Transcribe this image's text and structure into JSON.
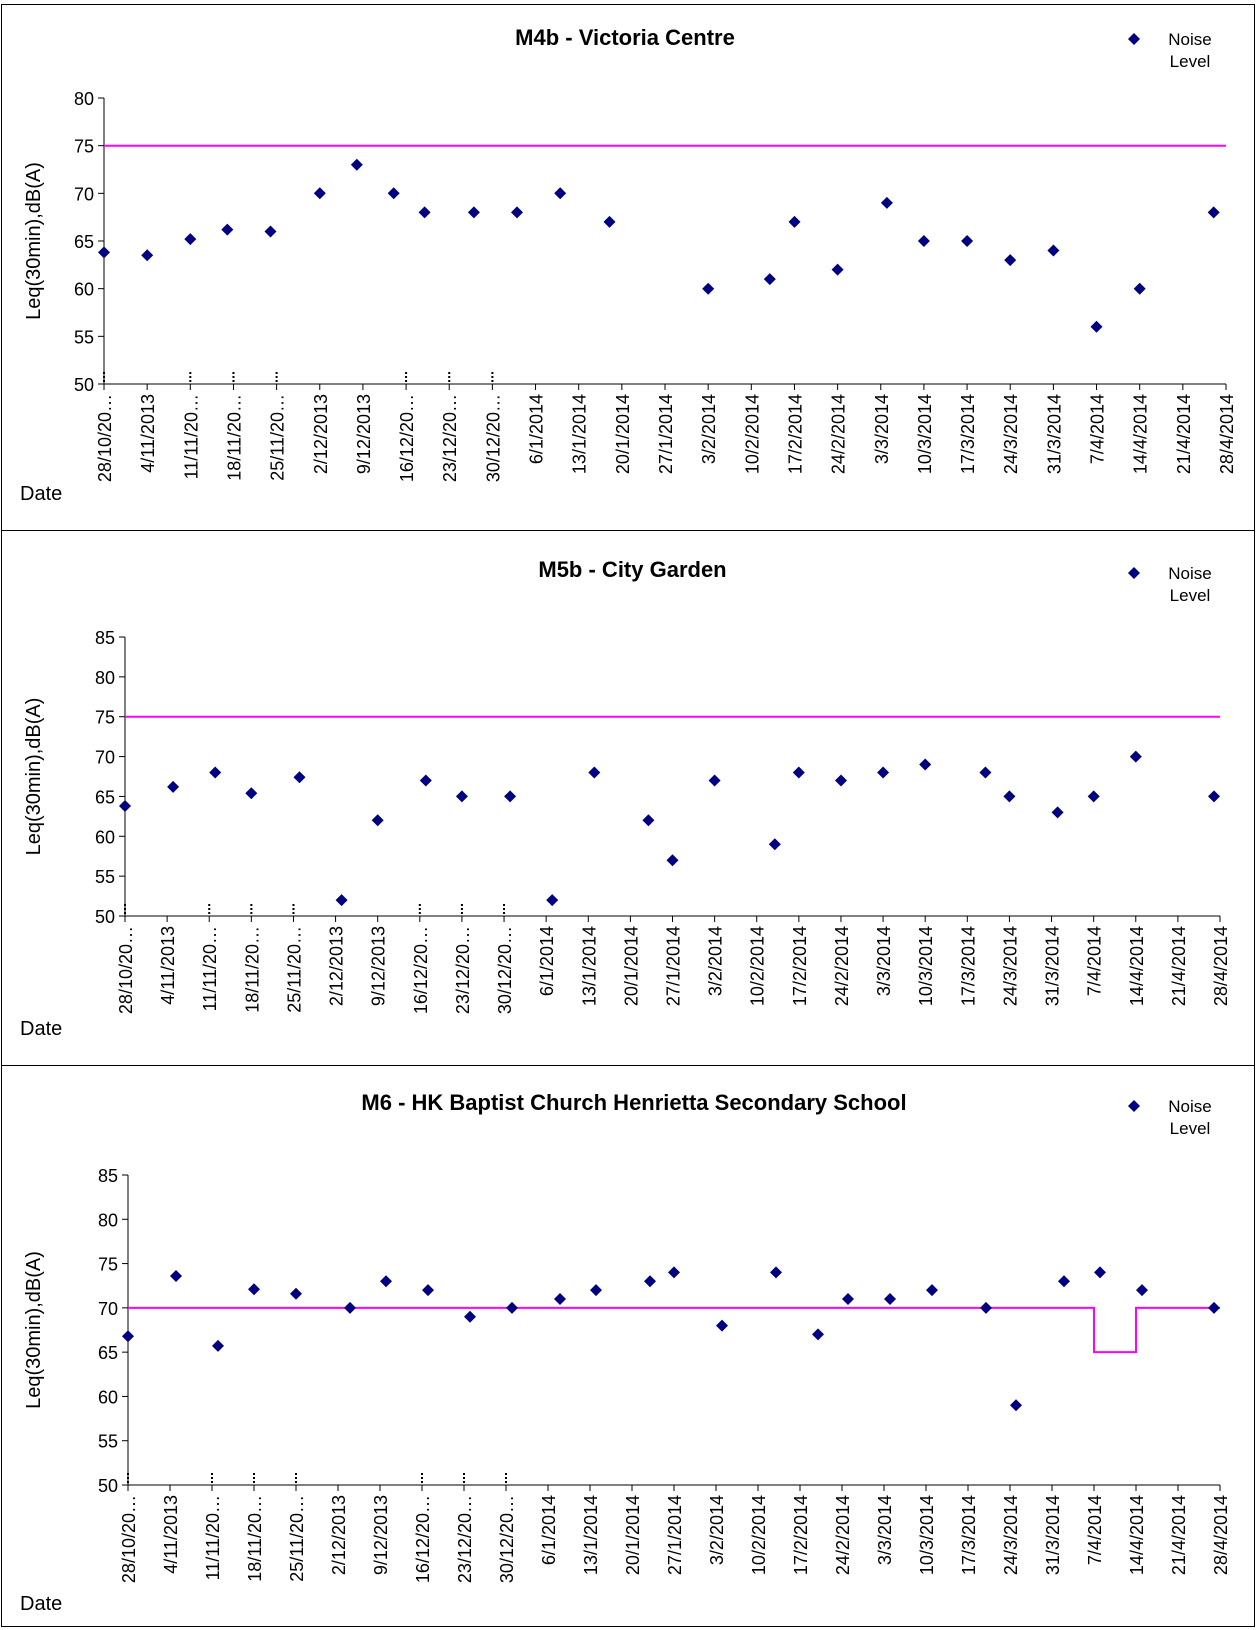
{
  "chart_data": [
    {
      "type": "scatter",
      "title": "M4b - Victoria Centre",
      "xlabel": "Date",
      "ylabel": "Leq(30min),dB(A)",
      "ylim": [
        50,
        80
      ],
      "yticks": [
        "50",
        "55",
        "60",
        "65",
        "70",
        "75",
        "80"
      ],
      "xlim": [
        "2013-10-28",
        "2014-04-28"
      ],
      "xticks": [
        "28/10/20…",
        "4/11/2013",
        "11/11/20…",
        "18/11/20…",
        "25/11/20…",
        "2/12/2013",
        "9/12/2013",
        "16/12/20…",
        "23/12/20…",
        "30/12/20…",
        "6/1/2014",
        "13/1/2014",
        "20/1/2014",
        "27/1/2014",
        "3/2/2014",
        "10/2/2014",
        "17/2/2014",
        "24/2/2014",
        "3/3/2014",
        "10/3/2014",
        "17/3/2014",
        "24/3/2014",
        "31/3/2014",
        "7/4/2014",
        "14/4/2014",
        "21/4/2014",
        "28/4/2014"
      ],
      "legend": {
        "position": "top-right",
        "marker_label": "Noise Level"
      },
      "limit_color": "#ff00ff",
      "marker_color": "#000080",
      "limit": [
        [
          "2013-10-28",
          75
        ],
        [
          "2014-04-28",
          75
        ]
      ],
      "series": [
        {
          "name": "Noise Level",
          "x": [
            "2013-10-28",
            "2013-11-04",
            "2013-11-11",
            "2013-11-17",
            "2013-11-24",
            "2013-12-02",
            "2013-12-08",
            "2013-12-14",
            "2013-12-19",
            "2013-12-27",
            "2014-01-03",
            "2014-01-10",
            "2014-01-18",
            "2014-02-03",
            "2014-02-13",
            "2014-02-17",
            "2014-02-24",
            "2014-03-04",
            "2014-03-10",
            "2014-03-17",
            "2014-03-24",
            "2014-03-31",
            "2014-04-07",
            "2014-04-14",
            "2014-04-26"
          ],
          "y": [
            63.8,
            63.5,
            65.2,
            66.2,
            66.0,
            70.0,
            73.0,
            70.0,
            68.0,
            68.0,
            68.0,
            70.0,
            67.0,
            60.0,
            61.0,
            67.0,
            62.0,
            69.0,
            65.0,
            65.0,
            63.0,
            64.0,
            56.0,
            60.0,
            68.0
          ]
        }
      ]
    },
    {
      "type": "scatter",
      "title": "M5b - City Garden",
      "xlabel": "Date",
      "ylabel": "Leq(30min),dB(A)",
      "ylim": [
        50,
        85
      ],
      "yticks": [
        "50",
        "55",
        "60",
        "65",
        "70",
        "75",
        "80",
        "85"
      ],
      "xlim": [
        "2013-10-28",
        "2014-04-28"
      ],
      "xticks": [
        "28/10/20…",
        "4/11/2013",
        "11/11/20…",
        "18/11/20…",
        "25/11/20…",
        "2/12/2013",
        "9/12/2013",
        "16/12/20…",
        "23/12/20…",
        "30/12/20…",
        "6/1/2014",
        "13/1/2014",
        "20/1/2014",
        "27/1/2014",
        "3/2/2014",
        "10/2/2014",
        "17/2/2014",
        "24/2/2014",
        "3/3/2014",
        "10/3/2014",
        "17/3/2014",
        "24/3/2014",
        "31/3/2014",
        "7/4/2014",
        "14/4/2014",
        "21/4/2014",
        "28/4/2014"
      ],
      "legend": {
        "position": "top-right",
        "marker_label": "Noise Level"
      },
      "limit_color": "#ff00ff",
      "marker_color": "#000080",
      "limit": [
        [
          "2013-10-28",
          75
        ],
        [
          "2014-04-28",
          75
        ]
      ],
      "series": [
        {
          "name": "Noise Level",
          "x": [
            "2013-10-28",
            "2013-11-05",
            "2013-11-12",
            "2013-11-18",
            "2013-11-26",
            "2013-12-03",
            "2013-12-09",
            "2013-12-17",
            "2013-12-23",
            "2013-12-31",
            "2014-01-07",
            "2014-01-14",
            "2014-01-23",
            "2014-01-27",
            "2014-02-03",
            "2014-02-13",
            "2014-02-17",
            "2014-02-24",
            "2014-03-03",
            "2014-03-10",
            "2014-03-20",
            "2014-03-24",
            "2014-04-01",
            "2014-04-07",
            "2014-04-14",
            "2014-04-27"
          ],
          "y": [
            63.8,
            66.2,
            68.0,
            65.4,
            67.4,
            52.0,
            62.0,
            67.0,
            65.0,
            65.0,
            52.0,
            68.0,
            62.0,
            57.0,
            67.0,
            59.0,
            68.0,
            67.0,
            68.0,
            69.0,
            68.0,
            65.0,
            63.0,
            65.0,
            70.0,
            65.0
          ]
        }
      ]
    },
    {
      "type": "scatter",
      "title": "M6 - HK Baptist Church Henrietta Secondary School",
      "xlabel": "Date",
      "ylabel": "Leq(30min),dB(A)",
      "ylim": [
        50,
        85
      ],
      "yticks": [
        "50",
        "55",
        "60",
        "65",
        "70",
        "75",
        "80",
        "85"
      ],
      "xlim": [
        "2013-10-28",
        "2014-04-28"
      ],
      "xticks": [
        "28/10/20…",
        "4/11/2013",
        "11/11/20…",
        "18/11/20…",
        "25/11/20…",
        "2/12/2013",
        "9/12/2013",
        "16/12/20…",
        "23/12/20…",
        "30/12/20…",
        "6/1/2014",
        "13/1/2014",
        "20/1/2014",
        "27/1/2014",
        "3/2/2014",
        "10/2/2014",
        "17/2/2014",
        "24/2/2014",
        "3/3/2014",
        "10/3/2014",
        "17/3/2014",
        "24/3/2014",
        "31/3/2014",
        "7/4/2014",
        "14/4/2014",
        "21/4/2014",
        "28/4/2014"
      ],
      "legend": {
        "position": "top-right",
        "marker_label": "Noise Level"
      },
      "limit_color": "#ff00ff",
      "marker_color": "#000080",
      "limit": [
        [
          "2013-10-28",
          70
        ],
        [
          "2014-04-07",
          70
        ],
        [
          "2014-04-07",
          65
        ],
        [
          "2014-04-14",
          65
        ],
        [
          "2014-04-14",
          70
        ],
        [
          "2014-04-28",
          70
        ]
      ],
      "series": [
        {
          "name": "Noise Level",
          "x": [
            "2013-10-28",
            "2013-11-05",
            "2013-11-12",
            "2013-11-18",
            "2013-11-25",
            "2013-12-04",
            "2013-12-10",
            "2013-12-17",
            "2013-12-24",
            "2013-12-31",
            "2014-01-08",
            "2014-01-14",
            "2014-01-23",
            "2014-01-27",
            "2014-02-04",
            "2014-02-13",
            "2014-02-20",
            "2014-02-25",
            "2014-03-04",
            "2014-03-11",
            "2014-03-20",
            "2014-03-25",
            "2014-04-02",
            "2014-04-08",
            "2014-04-15",
            "2014-04-27"
          ],
          "y": [
            66.8,
            73.6,
            65.7,
            72.1,
            71.6,
            70.0,
            73.0,
            72.0,
            69.0,
            70.0,
            71.0,
            72.0,
            73.0,
            74.0,
            68.0,
            74.0,
            67.0,
            71.0,
            71.0,
            72.0,
            70.0,
            59.0,
            73.0,
            74.0,
            72.0,
            70.0
          ]
        }
      ]
    }
  ]
}
